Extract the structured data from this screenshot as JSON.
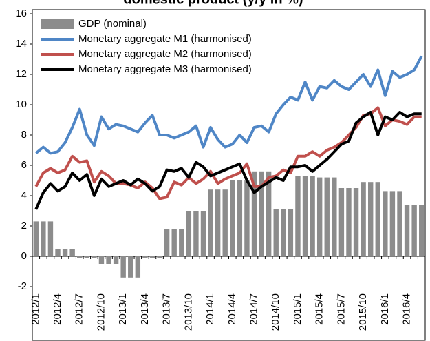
{
  "chart_data": {
    "type": "combo",
    "title": "domestic product (y/y in %)",
    "categories": [
      "2012/1",
      null,
      null,
      "2012/4",
      null,
      null,
      "2012/7",
      null,
      null,
      "2012/10",
      null,
      null,
      "2013/1",
      null,
      null,
      "2013/4",
      null,
      null,
      "2013/7",
      null,
      null,
      "2013/10",
      null,
      null,
      "2014/1",
      null,
      null,
      "2014/4",
      null,
      null,
      "2014/7",
      null,
      null,
      "2014/10",
      null,
      null,
      "2015/1",
      null,
      null,
      "2015/4",
      null,
      null,
      "2015/7",
      null,
      null,
      "2015/10",
      null,
      null,
      "2016/1",
      null,
      null,
      "2016/4",
      null,
      null
    ],
    "series": [
      {
        "name": "GDP (nominal)",
        "type": "bar",
        "color": "#8c8c8c",
        "values": [
          2.3,
          2.3,
          2.3,
          0.5,
          0.5,
          0.5,
          -0.1,
          -0.1,
          -0.1,
          -0.5,
          -0.5,
          -0.5,
          -1.4,
          -1.4,
          -1.4,
          -0.1,
          -0.1,
          -0.1,
          1.8,
          1.8,
          1.8,
          3.0,
          3.0,
          3.0,
          4.4,
          4.4,
          4.4,
          5.0,
          5.0,
          5.0,
          5.6,
          5.6,
          5.6,
          3.1,
          3.1,
          3.1,
          5.3,
          5.3,
          5.3,
          5.2,
          5.2,
          5.2,
          4.5,
          4.5,
          4.5,
          4.9,
          4.9,
          4.9,
          4.3,
          4.3,
          4.3,
          3.4,
          3.4,
          3.4
        ]
      },
      {
        "name": "Monetary aggregate M1 (harmonised)",
        "type": "line",
        "color": "#4f86c6",
        "values": [
          6.8,
          7.2,
          6.8,
          6.9,
          7.5,
          8.5,
          9.7,
          8.0,
          7.3,
          9.2,
          8.4,
          8.7,
          8.6,
          8.4,
          8.2,
          8.8,
          9.3,
          8.0,
          8.0,
          7.8,
          8.0,
          8.2,
          8.6,
          7.2,
          8.5,
          7.7,
          7.2,
          7.4,
          8.0,
          7.5,
          8.5,
          8.6,
          8.2,
          9.4,
          10.0,
          10.5,
          10.3,
          11.5,
          10.3,
          11.2,
          11.1,
          11.6,
          11.2,
          11.0,
          11.5,
          12.0,
          11.2,
          12.3,
          10.6,
          12.2,
          11.8,
          12.0,
          12.3,
          13.2
        ]
      },
      {
        "name": "Monetary aggregate M2 (harmonised)",
        "type": "line",
        "color": "#c0504d",
        "values": [
          4.6,
          5.5,
          5.8,
          5.5,
          5.7,
          6.6,
          6.2,
          6.3,
          4.9,
          5.6,
          5.3,
          4.8,
          4.8,
          4.7,
          4.5,
          4.9,
          4.5,
          3.8,
          3.9,
          4.9,
          4.7,
          5.2,
          4.8,
          5.1,
          5.6,
          4.8,
          5.1,
          5.3,
          5.5,
          6.1,
          4.6,
          4.6,
          5.2,
          5.3,
          5.7,
          5.5,
          6.6,
          6.6,
          6.9,
          6.6,
          7.0,
          7.2,
          7.5,
          8.0,
          8.5,
          9.3,
          9.4,
          9.8,
          8.6,
          9.0,
          8.9,
          8.7,
          9.2,
          9.2
        ]
      },
      {
        "name": "Monetary aggregate M3 (harmonised)",
        "type": "line",
        "color": "#000000",
        "values": [
          3.1,
          4.2,
          4.8,
          4.3,
          4.6,
          5.5,
          5.0,
          5.4,
          4.0,
          5.1,
          4.6,
          4.8,
          5.0,
          4.7,
          5.1,
          4.8,
          4.3,
          4.6,
          5.7,
          5.6,
          5.8,
          5.2,
          6.2,
          5.9,
          5.3,
          5.5,
          5.7,
          5.9,
          6.1,
          5.0,
          4.2,
          4.6,
          4.9,
          5.2,
          5.0,
          5.9,
          5.9,
          6.0,
          5.6,
          6.0,
          6.4,
          6.9,
          7.4,
          7.6,
          8.8,
          9.2,
          9.5,
          8.0,
          9.2,
          9.0,
          9.5,
          9.2,
          9.4,
          9.4
        ]
      }
    ],
    "ylim": [
      -2,
      16
    ],
    "yticks": [
      -2,
      0,
      2,
      4,
      6,
      8,
      10,
      12,
      14,
      16
    ],
    "grid": false,
    "legend": "top-left"
  }
}
